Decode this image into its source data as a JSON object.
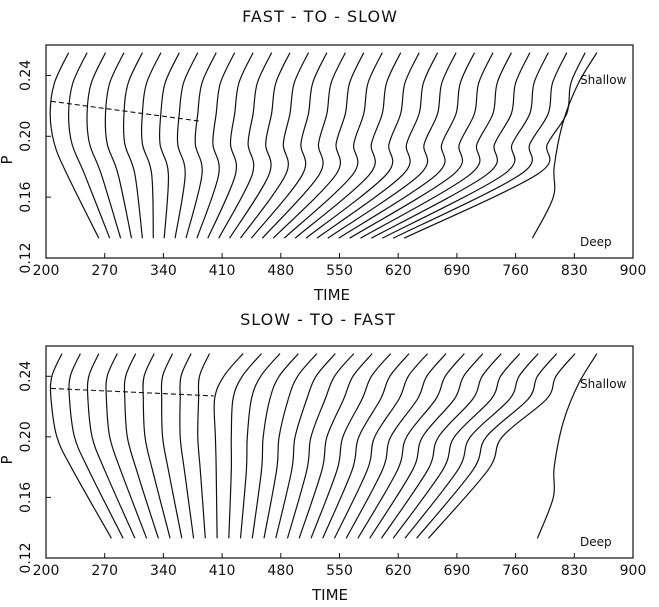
{
  "chart_data": [
    {
      "type": "line",
      "title": "FAST - TO - SLOW",
      "xlabel": "TIME",
      "ylabel": "P",
      "xlim": [
        200,
        900
      ],
      "ylim": [
        0.12,
        0.26
      ],
      "xticks": [
        "200",
        "270",
        "340",
        "410",
        "480",
        "550",
        "620",
        "690",
        "760",
        "830",
        "900"
      ],
      "yticks": [
        "0.12",
        "0.16",
        "0.20",
        "0.24"
      ],
      "annotations": {
        "top": "Shallow",
        "bottom": "Deep"
      },
      "dashed_line": {
        "x": [
          206,
          383
        ],
        "y": [
          0.223,
          0.21
        ]
      },
      "series": [
        {
          "x": [
            227,
            210,
            205,
            210,
            225,
            263
          ],
          "y": [
            0.255,
            0.235,
            0.215,
            0.195,
            0.175,
            0.133
          ]
        },
        {
          "x": [
            249,
            232,
            227,
            231,
            246,
            276
          ],
          "y": [
            0.255,
            0.235,
            0.215,
            0.195,
            0.175,
            0.133
          ]
        },
        {
          "x": [
            271,
            254,
            249,
            252,
            266,
            289
          ],
          "y": [
            0.255,
            0.235,
            0.215,
            0.195,
            0.175,
            0.133
          ]
        },
        {
          "x": [
            293,
            276,
            271,
            273,
            286,
            302
          ],
          "y": [
            0.255,
            0.235,
            0.215,
            0.195,
            0.175,
            0.133
          ]
        },
        {
          "x": [
            315,
            298,
            293,
            294,
            306,
            315
          ],
          "y": [
            0.255,
            0.235,
            0.215,
            0.195,
            0.175,
            0.133
          ]
        },
        {
          "x": [
            337,
            320,
            315,
            315,
            326,
            328
          ],
          "y": [
            0.255,
            0.235,
            0.215,
            0.195,
            0.175,
            0.133
          ]
        },
        {
          "x": [
            359,
            342,
            337,
            336,
            346,
            341
          ],
          "y": [
            0.255,
            0.235,
            0.215,
            0.195,
            0.175,
            0.133
          ]
        },
        {
          "x": [
            381,
            364,
            359,
            357,
            366,
            354
          ],
          "y": [
            0.255,
            0.235,
            0.215,
            0.195,
            0.175,
            0.133
          ]
        },
        {
          "x": [
            403,
            386,
            381,
            378,
            386,
            367
          ],
          "y": [
            0.255,
            0.235,
            0.215,
            0.195,
            0.175,
            0.133
          ]
        },
        {
          "x": [
            425,
            408,
            403,
            399,
            406,
            380
          ],
          "y": [
            0.255,
            0.235,
            0.215,
            0.195,
            0.175,
            0.133
          ]
        },
        {
          "x": [
            447,
            430,
            425,
            420,
            426,
            393
          ],
          "y": [
            0.255,
            0.235,
            0.215,
            0.195,
            0.175,
            0.133
          ]
        },
        {
          "x": [
            469,
            452,
            447,
            441,
            446,
            406
          ],
          "y": [
            0.255,
            0.235,
            0.215,
            0.195,
            0.175,
            0.133
          ]
        },
        {
          "x": [
            491,
            474,
            469,
            462,
            466,
            419
          ],
          "y": [
            0.255,
            0.235,
            0.215,
            0.195,
            0.175,
            0.133
          ]
        },
        {
          "x": [
            513,
            496,
            491,
            483,
            486,
            432
          ],
          "y": [
            0.255,
            0.235,
            0.215,
            0.195,
            0.175,
            0.133
          ]
        },
        {
          "x": [
            535,
            518,
            513,
            504,
            506,
            445
          ],
          "y": [
            0.255,
            0.235,
            0.215,
            0.195,
            0.175,
            0.133
          ]
        },
        {
          "x": [
            557,
            540,
            535,
            525,
            526,
            458
          ],
          "y": [
            0.255,
            0.235,
            0.215,
            0.195,
            0.175,
            0.133
          ]
        },
        {
          "x": [
            579,
            562,
            557,
            546,
            546,
            471
          ],
          "y": [
            0.255,
            0.235,
            0.215,
            0.195,
            0.175,
            0.133
          ]
        },
        {
          "x": [
            601,
            584,
            579,
            567,
            566,
            484
          ],
          "y": [
            0.255,
            0.235,
            0.215,
            0.195,
            0.175,
            0.133
          ]
        },
        {
          "x": [
            623,
            606,
            601,
            588,
            586,
            497
          ],
          "y": [
            0.255,
            0.235,
            0.215,
            0.195,
            0.175,
            0.133
          ]
        },
        {
          "x": [
            645,
            628,
            623,
            609,
            606,
            510
          ],
          "y": [
            0.255,
            0.235,
            0.215,
            0.195,
            0.175,
            0.133
          ]
        },
        {
          "x": [
            667,
            650,
            645,
            630,
            626,
            523
          ],
          "y": [
            0.255,
            0.235,
            0.215,
            0.195,
            0.175,
            0.133
          ]
        },
        {
          "x": [
            689,
            672,
            667,
            651,
            646,
            536
          ],
          "y": [
            0.255,
            0.235,
            0.215,
            0.195,
            0.175,
            0.133
          ]
        },
        {
          "x": [
            711,
            694,
            689,
            672,
            666,
            549
          ],
          "y": [
            0.255,
            0.235,
            0.215,
            0.195,
            0.175,
            0.133
          ]
        },
        {
          "x": [
            733,
            716,
            711,
            693,
            686,
            562
          ],
          "y": [
            0.255,
            0.235,
            0.215,
            0.195,
            0.175,
            0.133
          ]
        },
        {
          "x": [
            755,
            738,
            733,
            714,
            706,
            575
          ],
          "y": [
            0.255,
            0.235,
            0.215,
            0.195,
            0.175,
            0.133
          ]
        },
        {
          "x": [
            777,
            760,
            755,
            735,
            726,
            588
          ],
          "y": [
            0.255,
            0.235,
            0.215,
            0.195,
            0.175,
            0.133
          ]
        },
        {
          "x": [
            799,
            782,
            777,
            756,
            746,
            601
          ],
          "y": [
            0.255,
            0.235,
            0.215,
            0.195,
            0.175,
            0.133
          ]
        },
        {
          "x": [
            821,
            804,
            799,
            777,
            766,
            614
          ],
          "y": [
            0.255,
            0.235,
            0.215,
            0.195,
            0.175,
            0.133
          ]
        },
        {
          "x": [
            843,
            826,
            821,
            798,
            786,
            627
          ],
          "y": [
            0.255,
            0.235,
            0.215,
            0.195,
            0.175,
            0.133
          ]
        },
        {
          "x": [
            857,
            835,
            817,
            806,
            805,
            780
          ],
          "y": [
            0.255,
            0.235,
            0.21,
            0.18,
            0.16,
            0.133
          ]
        }
      ]
    },
    {
      "type": "line",
      "title": "SLOW - TO - FAST",
      "xlabel": "TIME",
      "ylabel": "P",
      "xlim": [
        200,
        900
      ],
      "ylim": [
        0.12,
        0.26
      ],
      "xticks": [
        "200",
        "270",
        "340",
        "410",
        "480",
        "550",
        "620",
        "690",
        "760",
        "830",
        "900"
      ],
      "yticks": [
        "0.12",
        "0.16",
        "0.20",
        "0.24"
      ],
      "annotations": {
        "top": "Shallow",
        "bottom": "Deep"
      },
      "dashed_line": {
        "x": [
          206,
          400
        ],
        "y": [
          0.232,
          0.227
        ]
      },
      "series": [
        {
          "x": [
            219,
            207,
            206,
            213,
            232,
            278
          ],
          "y": [
            0.255,
            0.24,
            0.225,
            0.2,
            0.178,
            0.133
          ]
        },
        {
          "x": [
            241,
            229,
            228,
            234,
            251,
            292
          ],
          "y": [
            0.255,
            0.24,
            0.225,
            0.2,
            0.178,
            0.133
          ]
        },
        {
          "x": [
            263,
            251,
            250,
            255,
            270,
            306
          ],
          "y": [
            0.255,
            0.24,
            0.225,
            0.2,
            0.178,
            0.133
          ]
        },
        {
          "x": [
            285,
            273,
            272,
            276,
            289,
            320
          ],
          "y": [
            0.255,
            0.24,
            0.225,
            0.2,
            0.178,
            0.133
          ]
        },
        {
          "x": [
            307,
            295,
            294,
            297,
            308,
            334
          ],
          "y": [
            0.255,
            0.24,
            0.225,
            0.2,
            0.178,
            0.133
          ]
        },
        {
          "x": [
            329,
            317,
            316,
            318,
            327,
            348
          ],
          "y": [
            0.255,
            0.24,
            0.225,
            0.2,
            0.178,
            0.133
          ]
        },
        {
          "x": [
            351,
            339,
            338,
            339,
            346,
            362
          ],
          "y": [
            0.255,
            0.24,
            0.225,
            0.2,
            0.178,
            0.133
          ]
        },
        {
          "x": [
            373,
            361,
            360,
            360,
            365,
            376
          ],
          "y": [
            0.255,
            0.24,
            0.225,
            0.2,
            0.178,
            0.133
          ]
        },
        {
          "x": [
            395,
            383,
            382,
            381,
            384,
            390
          ],
          "y": [
            0.255,
            0.24,
            0.225,
            0.2,
            0.178,
            0.133
          ]
        },
        {
          "x": [
            435,
            412,
            401,
            402,
            403,
            404
          ],
          "y": [
            0.255,
            0.24,
            0.225,
            0.2,
            0.178,
            0.133
          ]
        },
        {
          "x": [
            457,
            434,
            423,
            421,
            421,
            418
          ],
          "y": [
            0.255,
            0.24,
            0.225,
            0.2,
            0.178,
            0.133
          ]
        },
        {
          "x": [
            479,
            456,
            445,
            440,
            439,
            432
          ],
          "y": [
            0.255,
            0.24,
            0.225,
            0.2,
            0.178,
            0.133
          ]
        },
        {
          "x": [
            501,
            478,
            467,
            459,
            457,
            446
          ],
          "y": [
            0.255,
            0.24,
            0.225,
            0.2,
            0.178,
            0.133
          ]
        },
        {
          "x": [
            523,
            500,
            489,
            478,
            475,
            460
          ],
          "y": [
            0.255,
            0.24,
            0.225,
            0.2,
            0.178,
            0.133
          ]
        },
        {
          "x": [
            545,
            522,
            511,
            497,
            493,
            474
          ],
          "y": [
            0.255,
            0.24,
            0.225,
            0.2,
            0.178,
            0.133
          ]
        },
        {
          "x": [
            567,
            544,
            533,
            516,
            511,
            488
          ],
          "y": [
            0.255,
            0.24,
            0.225,
            0.2,
            0.178,
            0.133
          ]
        },
        {
          "x": [
            589,
            566,
            555,
            535,
            529,
            502
          ],
          "y": [
            0.255,
            0.24,
            0.225,
            0.2,
            0.178,
            0.133
          ]
        },
        {
          "x": [
            611,
            588,
            577,
            554,
            547,
            516
          ],
          "y": [
            0.255,
            0.24,
            0.225,
            0.2,
            0.178,
            0.133
          ]
        },
        {
          "x": [
            633,
            610,
            599,
            573,
            565,
            530
          ],
          "y": [
            0.255,
            0.24,
            0.225,
            0.2,
            0.178,
            0.133
          ]
        },
        {
          "x": [
            655,
            632,
            621,
            592,
            583,
            544
          ],
          "y": [
            0.255,
            0.24,
            0.225,
            0.2,
            0.178,
            0.133
          ]
        },
        {
          "x": [
            677,
            654,
            643,
            611,
            601,
            558
          ],
          "y": [
            0.255,
            0.24,
            0.225,
            0.2,
            0.178,
            0.133
          ]
        },
        {
          "x": [
            699,
            676,
            665,
            630,
            619,
            572
          ],
          "y": [
            0.255,
            0.24,
            0.225,
            0.2,
            0.178,
            0.133
          ]
        },
        {
          "x": [
            721,
            698,
            687,
            649,
            637,
            586
          ],
          "y": [
            0.255,
            0.24,
            0.225,
            0.2,
            0.178,
            0.133
          ]
        },
        {
          "x": [
            743,
            720,
            709,
            668,
            655,
            600
          ],
          "y": [
            0.255,
            0.24,
            0.225,
            0.2,
            0.178,
            0.133
          ]
        },
        {
          "x": [
            765,
            742,
            731,
            687,
            673,
            614
          ],
          "y": [
            0.255,
            0.24,
            0.225,
            0.2,
            0.178,
            0.133
          ]
        },
        {
          "x": [
            787,
            764,
            753,
            706,
            691,
            628
          ],
          "y": [
            0.255,
            0.24,
            0.225,
            0.2,
            0.178,
            0.133
          ]
        },
        {
          "x": [
            809,
            786,
            775,
            725,
            709,
            642
          ],
          "y": [
            0.255,
            0.24,
            0.225,
            0.2,
            0.178,
            0.133
          ]
        },
        {
          "x": [
            831,
            808,
            797,
            744,
            727,
            656
          ],
          "y": [
            0.255,
            0.24,
            0.225,
            0.2,
            0.178,
            0.133
          ]
        },
        {
          "x": [
            857,
            835,
            817,
            806,
            805,
            786
          ],
          "y": [
            0.255,
            0.235,
            0.21,
            0.18,
            0.16,
            0.133
          ]
        }
      ]
    }
  ]
}
